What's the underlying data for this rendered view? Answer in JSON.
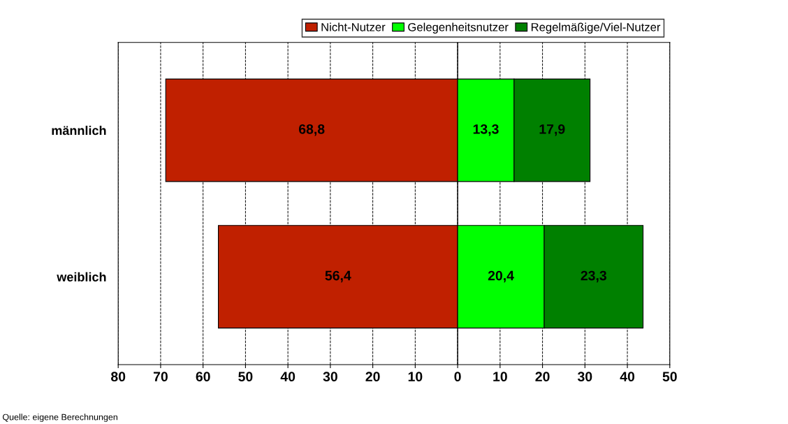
{
  "chart_data": {
    "type": "bar",
    "orientation": "horizontal",
    "categories": [
      "männlich",
      "weiblich"
    ],
    "series": [
      {
        "name": "Nicht-Nutzer",
        "color": "#c02000",
        "values": [
          68.8,
          56.4
        ],
        "base": [
          -68.8,
          -56.4
        ],
        "value_labels": [
          "68,8",
          "56,4"
        ]
      },
      {
        "name": "Gelegenheitsnutzer",
        "color": "#00ff00",
        "values": [
          13.3,
          20.4
        ],
        "base": [
          0,
          0
        ],
        "value_labels": [
          "13,3",
          "20,4"
        ]
      },
      {
        "name": "Regelmäßige/Viel-Nutzer",
        "color": "#008000",
        "values": [
          17.9,
          23.3
        ],
        "base": [
          13.3,
          20.4
        ],
        "value_labels": [
          "17,9",
          "23,3"
        ]
      }
    ],
    "xlim": [
      -80,
      50
    ],
    "xticks": [
      {
        "value": -80,
        "label": "80"
      },
      {
        "value": -70,
        "label": "70"
      },
      {
        "value": -60,
        "label": "60"
      },
      {
        "value": -50,
        "label": "50"
      },
      {
        "value": -40,
        "label": "40"
      },
      {
        "value": -30,
        "label": "30"
      },
      {
        "value": -20,
        "label": "20"
      },
      {
        "value": -10,
        "label": "10"
      },
      0,
      10,
      20,
      30,
      40,
      50
    ],
    "grid": "x",
    "legend": "top right",
    "annotations": [
      "Quelle: eigene Berechnungen"
    ]
  }
}
